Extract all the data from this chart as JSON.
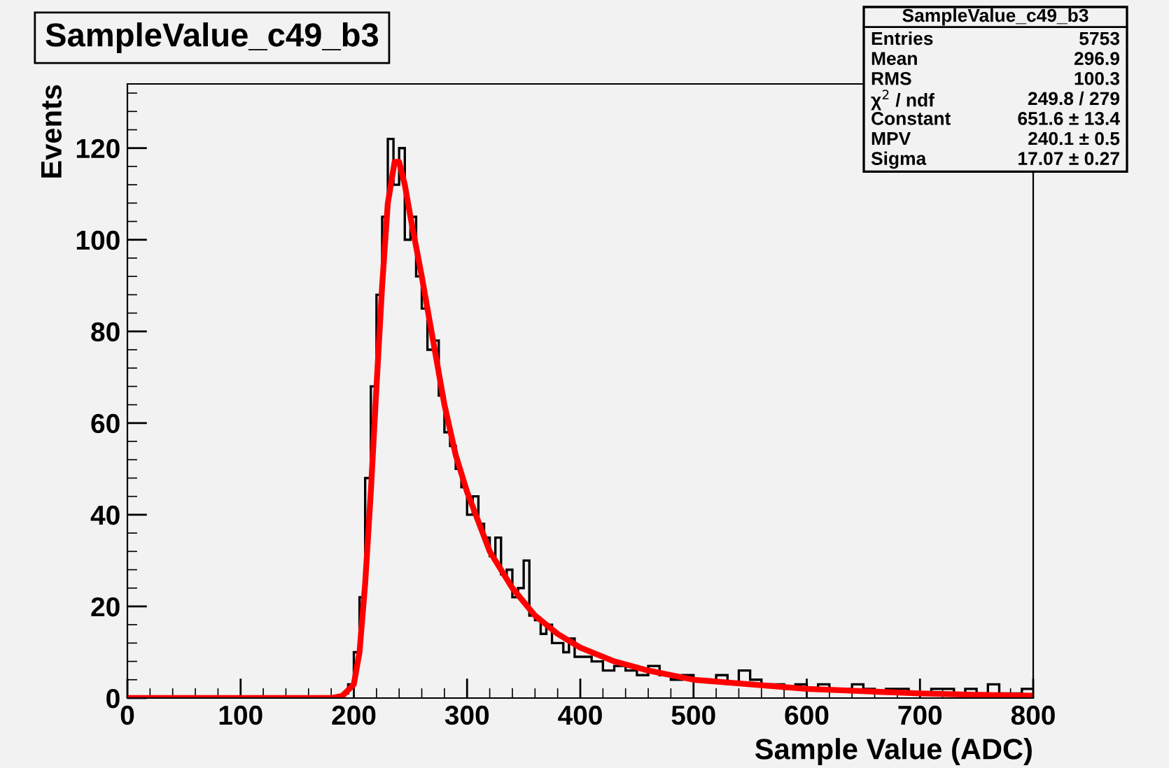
{
  "chart_data": {
    "type": "histogram",
    "title": "SampleValue_c49_b3",
    "xlabel": "Sample Value (ADC)",
    "ylabel": "Events",
    "bins": [
      0,
      180,
      185,
      190,
      195,
      200,
      205,
      210,
      215,
      220,
      225,
      230,
      235,
      240,
      245,
      250,
      255,
      260,
      265,
      270,
      275,
      280,
      285,
      290,
      295,
      300,
      305,
      310,
      315,
      320,
      325,
      330,
      335,
      340,
      345,
      350,
      355,
      360,
      365,
      370,
      375,
      380,
      385,
      390,
      395,
      400,
      410,
      420,
      430,
      440,
      450,
      460,
      470,
      480,
      490,
      500,
      510,
      520,
      530,
      540,
      550,
      560,
      570,
      580,
      590,
      600,
      610,
      620,
      630,
      640,
      650,
      660,
      670,
      680,
      690,
      700,
      710,
      720,
      730,
      740,
      750,
      760,
      770,
      780,
      790,
      800
    ],
    "values": [
      0,
      0,
      0,
      1,
      3,
      10,
      22,
      48,
      68,
      88,
      105,
      122,
      112,
      120,
      100,
      105,
      92,
      85,
      76,
      78,
      66,
      58,
      55,
      50,
      46,
      40,
      44,
      38,
      35,
      31,
      35,
      27,
      28,
      22,
      24,
      30,
      18,
      17,
      14,
      16,
      12,
      12,
      10,
      13,
      9,
      9,
      8,
      6,
      7,
      6,
      5,
      7,
      5,
      4,
      5,
      4,
      4,
      5,
      3,
      6,
      4,
      3,
      3,
      2,
      3,
      2,
      3,
      2,
      2,
      3,
      2,
      1,
      2,
      2,
      1,
      1,
      2,
      2,
      1,
      2,
      1,
      3,
      1,
      1,
      2
    ],
    "color": "#000000",
    "series": [
      {
        "type": "line",
        "color": "#ff0000",
        "x": [
          0,
          170,
          180,
          190,
          200,
          205,
          210,
          215,
          220,
          225,
          230,
          236,
          240,
          245,
          250,
          260,
          270,
          280,
          290,
          300,
          320,
          340,
          360,
          380,
          400,
          430,
          460,
          500,
          550,
          600,
          650,
          700,
          750,
          800
        ],
        "values": [
          0,
          0,
          0,
          0.5,
          3,
          10,
          25,
          45,
          68,
          90,
          108,
          117,
          117,
          112,
          105,
          92,
          78,
          64,
          53,
          45,
          32,
          24,
          18,
          14,
          11,
          8,
          6,
          4,
          3,
          2,
          1.5,
          1,
          0.7,
          0.5
        ]
      }
    ],
    "xlim": [
      0,
      800
    ],
    "xticks": [
      0,
      100,
      200,
      300,
      400,
      500,
      600,
      700,
      800
    ],
    "ylim": [
      0,
      134
    ],
    "yticks": [
      0,
      20,
      40,
      60,
      80,
      100,
      120
    ],
    "grid": false,
    "annotations": [
      "SampleValue_c49_b3",
      "Entries",
      "5753",
      "Mean",
      "296.9",
      "RMS",
      "100.3",
      "χ$^{2}$ / ndf",
      "249.8 / 279",
      "Constant",
      "651.6 ± 13.4",
      "MPV",
      "240.1 ± 0.5",
      "Sigma",
      "17.07 ± 0.27"
    ]
  }
}
